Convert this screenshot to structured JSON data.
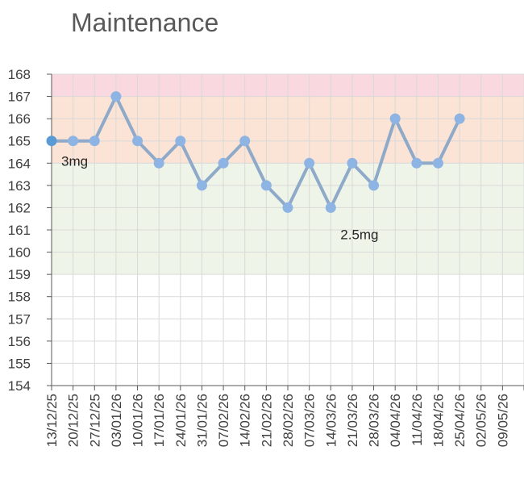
{
  "chart_data": {
    "type": "line",
    "title": "Maintenance",
    "xlabel": "",
    "ylabel": "",
    "ylim": [
      154,
      168
    ],
    "yticks": [
      154,
      155,
      156,
      157,
      158,
      159,
      160,
      161,
      162,
      163,
      164,
      165,
      166,
      167,
      168
    ],
    "categories": [
      "13/12/25",
      "20/12/25",
      "27/12/25",
      "03/01/26",
      "10/01/26",
      "17/01/26",
      "24/01/26",
      "31/01/26",
      "07/02/26",
      "14/02/26",
      "21/02/26",
      "28/02/26",
      "07/03/26",
      "14/03/26",
      "21/03/26",
      "28/03/26",
      "04/04/26",
      "11/04/26",
      "18/04/26",
      "25/04/26",
      "02/05/26",
      "09/05/26"
    ],
    "series": [
      {
        "values": [
          165,
          165,
          165,
          167,
          165,
          164,
          165,
          163,
          164,
          165,
          163,
          162,
          164,
          162,
          164,
          163,
          166,
          164,
          164,
          166,
          null,
          null
        ],
        "color": "#8FA9C9",
        "marker_color": "#8EB4E3",
        "first_marker_color": "#5B9BD5"
      }
    ],
    "bands": [
      {
        "from": 167,
        "to": 168,
        "color": "#F9D9DF"
      },
      {
        "from": 164,
        "to": 167,
        "color": "#FBE3D5"
      },
      {
        "from": 159,
        "to": 164,
        "color": "#EEF4E8"
      }
    ],
    "annotations": [
      {
        "text": "3mg",
        "category": "13/12/25",
        "y": 164.1
      },
      {
        "text": "2.5mg",
        "category": "14/03/26",
        "y": 160.8
      }
    ],
    "grid": true,
    "legend": "none"
  }
}
